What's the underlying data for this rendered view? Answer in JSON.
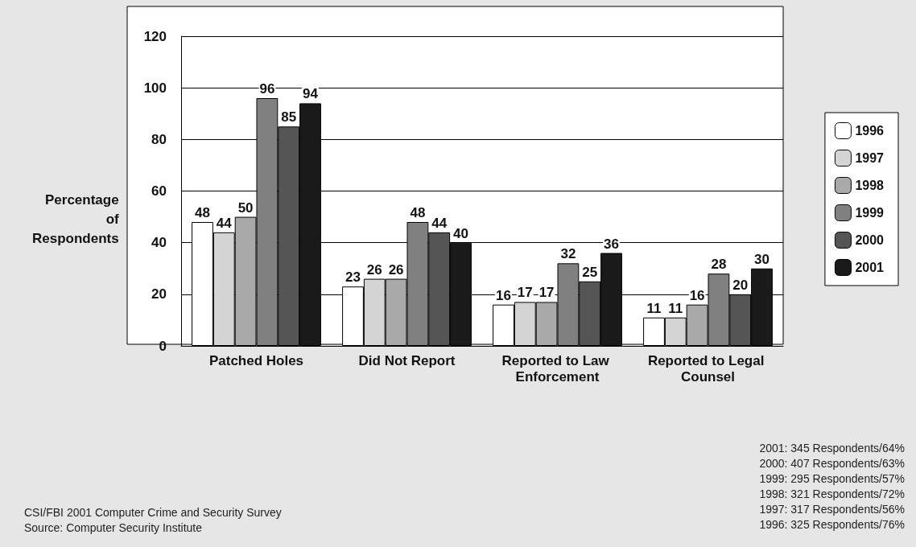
{
  "chart_data": {
    "type": "bar",
    "ylabel": "Percentage of Respondents",
    "categories": [
      "Patched Holes",
      "Did Not Report",
      "Reported to Law Enforcement",
      "Reported to Legal Counsel"
    ],
    "series": [
      {
        "name": "1996",
        "color": "#ffffff",
        "values": [
          48,
          23,
          16,
          11
        ]
      },
      {
        "name": "1997",
        "color": "#d4d4d4",
        "values": [
          44,
          26,
          17,
          11
        ]
      },
      {
        "name": "1998",
        "color": "#a9a9a9",
        "values": [
          50,
          26,
          17,
          16
        ]
      },
      {
        "name": "1999",
        "color": "#808080",
        "values": [
          96,
          48,
          32,
          28
        ]
      },
      {
        "name": "2000",
        "color": "#555555",
        "values": [
          85,
          44,
          25,
          20
        ]
      },
      {
        "name": "2001",
        "color": "#1a1a1a",
        "values": [
          94,
          40,
          36,
          30
        ]
      }
    ],
    "ylim": [
      0,
      120
    ],
    "yticks": [
      0,
      20,
      40,
      60,
      80,
      100,
      120
    ],
    "grid": "y",
    "legend": "right",
    "data_labels": true,
    "annotations": [
      "2001: 345 Respondents/64%",
      "2000: 407 Respondents/63%",
      "1999: 295 Respondents/57%",
      "1998: 321 Respondents/72%",
      "1997: 317 Respondents/56%",
      "1996: 325 Respondents/76%",
      "CSI/FBI 2001 Computer Crime and Security Survey",
      "Source: Computer Security Institute"
    ]
  }
}
